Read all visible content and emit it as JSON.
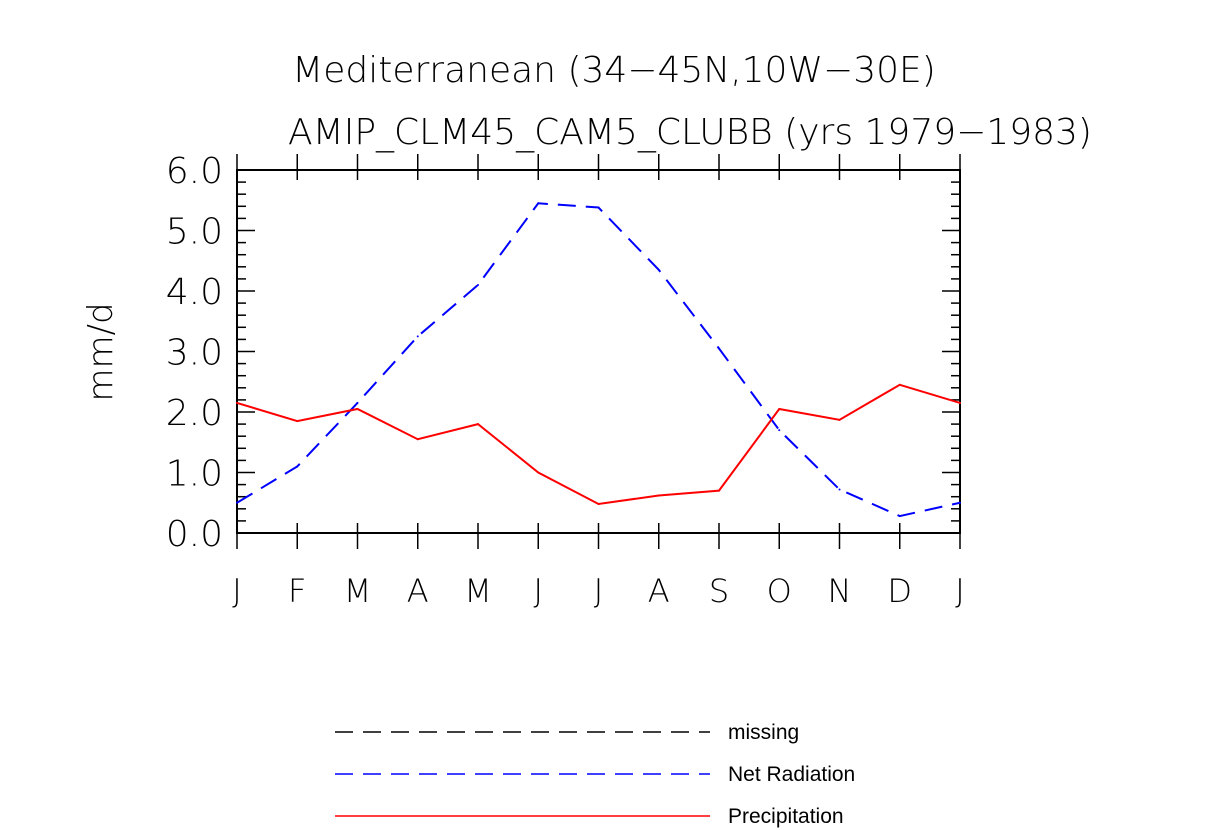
{
  "chart_data": {
    "type": "line",
    "title": "Mediterranean (34−45N,10W−30E)",
    "subtitle": "AMIP_CLM45_CAM5_CLUBB (yrs 1979−1983)",
    "xlabel": "",
    "ylabel": "mm/d",
    "categories": [
      "J",
      "F",
      "M",
      "A",
      "M",
      "J",
      "J",
      "A",
      "S",
      "O",
      "N",
      "D",
      "J"
    ],
    "ylim": [
      0,
      6
    ],
    "yticks": [
      "0.0",
      "1.0",
      "2.0",
      "3.0",
      "4.0",
      "5.0",
      "6.0"
    ],
    "series": [
      {
        "name": "missing",
        "color": "#000000",
        "style": "dashed",
        "values": [
          null,
          null,
          null,
          null,
          null,
          null,
          null,
          null,
          null,
          null,
          null,
          null,
          null
        ]
      },
      {
        "name": "Net Radiation",
        "color": "#0000ff",
        "style": "dashed",
        "values": [
          0.5,
          1.1,
          2.15,
          3.25,
          4.1,
          5.45,
          5.38,
          4.35,
          3.05,
          1.7,
          0.72,
          0.28,
          0.5
        ]
      },
      {
        "name": "Precipitation",
        "color": "#ff0000",
        "style": "solid",
        "values": [
          2.15,
          1.85,
          2.05,
          1.55,
          1.8,
          1.0,
          0.48,
          0.62,
          0.7,
          2.05,
          1.87,
          2.45,
          2.15
        ]
      }
    ]
  }
}
